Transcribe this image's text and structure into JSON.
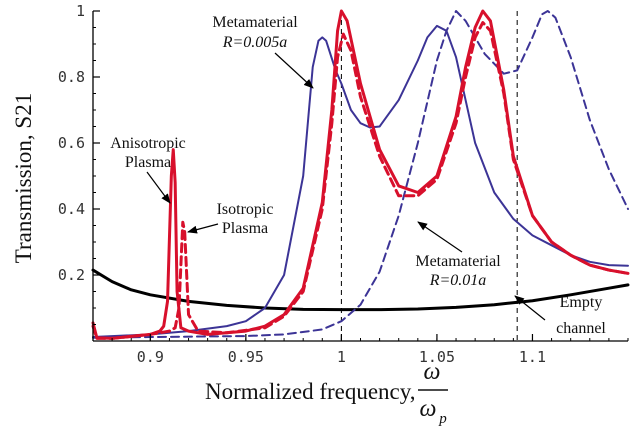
{
  "chart_data": {
    "type": "line",
    "xlabel": "Normalized frequency,",
    "xlabel_fraction": {
      "numerator": "ω",
      "denominator": "ω",
      "denominator_sub": "p"
    },
    "ylabel": "Transmission, S21",
    "xlim": [
      0.87,
      1.15
    ],
    "ylim": [
      0,
      1
    ],
    "x_ticks": [
      0.9,
      0.95,
      1.0,
      1.05,
      1.1
    ],
    "x_tick_labels": [
      "0.9",
      "0.95",
      "1",
      "1.05",
      "1.1"
    ],
    "y_ticks": [
      0.2,
      0.4,
      0.6,
      0.8,
      1.0
    ],
    "y_tick_labels": [
      "0.2",
      "0.4",
      "0.6",
      "0.8",
      "1"
    ],
    "grid": false,
    "reference_lines": [
      {
        "x": 1.0,
        "style": "dashed",
        "color": "#000000"
      },
      {
        "x": 1.092,
        "style": "dashed",
        "color": "#000000"
      }
    ],
    "series": [
      {
        "key": "empty",
        "color": "#000000",
        "dash": "solid",
        "width": 3,
        "points": [
          [
            0.87,
            0.215
          ],
          [
            0.88,
            0.18
          ],
          [
            0.89,
            0.155
          ],
          [
            0.9,
            0.14
          ],
          [
            0.92,
            0.12
          ],
          [
            0.94,
            0.108
          ],
          [
            0.96,
            0.1
          ],
          [
            0.98,
            0.096
          ],
          [
            1.0,
            0.095
          ],
          [
            1.02,
            0.095
          ],
          [
            1.04,
            0.097
          ],
          [
            1.06,
            0.102
          ],
          [
            1.08,
            0.11
          ],
          [
            1.1,
            0.122
          ],
          [
            1.12,
            0.14
          ],
          [
            1.14,
            0.16
          ],
          [
            1.15,
            0.17
          ]
        ]
      },
      {
        "key": "meta_r005",
        "color": "#3c3496",
        "dash": "solid",
        "width": 2,
        "points": [
          [
            0.87,
            0.012
          ],
          [
            0.9,
            0.02
          ],
          [
            0.92,
            0.03
          ],
          [
            0.94,
            0.045
          ],
          [
            0.95,
            0.06
          ],
          [
            0.96,
            0.1
          ],
          [
            0.97,
            0.2
          ],
          [
            0.98,
            0.5
          ],
          [
            0.985,
            0.83
          ],
          [
            0.988,
            0.91
          ],
          [
            0.99,
            0.92
          ],
          [
            0.992,
            0.91
          ],
          [
            0.997,
            0.82
          ],
          [
            1.0,
            0.78
          ],
          [
            1.005,
            0.7
          ],
          [
            1.01,
            0.66
          ],
          [
            1.015,
            0.647
          ],
          [
            1.02,
            0.65
          ],
          [
            1.03,
            0.73
          ],
          [
            1.04,
            0.85
          ],
          [
            1.045,
            0.92
          ],
          [
            1.05,
            0.955
          ],
          [
            1.055,
            0.94
          ],
          [
            1.06,
            0.86
          ],
          [
            1.07,
            0.6
          ],
          [
            1.08,
            0.45
          ],
          [
            1.09,
            0.37
          ],
          [
            1.1,
            0.32
          ],
          [
            1.11,
            0.29
          ],
          [
            1.12,
            0.26
          ],
          [
            1.13,
            0.24
          ],
          [
            1.14,
            0.23
          ],
          [
            1.15,
            0.228
          ]
        ]
      },
      {
        "key": "meta_r01",
        "color": "#3c3496",
        "dash": "dashed",
        "width": 2,
        "points": [
          [
            0.87,
            0.01
          ],
          [
            0.9,
            0.012
          ],
          [
            0.95,
            0.015
          ],
          [
            0.97,
            0.02
          ],
          [
            0.99,
            0.035
          ],
          [
            1.0,
            0.06
          ],
          [
            1.01,
            0.11
          ],
          [
            1.02,
            0.21
          ],
          [
            1.03,
            0.38
          ],
          [
            1.04,
            0.6
          ],
          [
            1.05,
            0.85
          ],
          [
            1.055,
            0.94
          ],
          [
            1.06,
            1.0
          ],
          [
            1.065,
            0.97
          ],
          [
            1.075,
            0.87
          ],
          [
            1.085,
            0.81
          ],
          [
            1.092,
            0.82
          ],
          [
            1.1,
            0.92
          ],
          [
            1.105,
            0.99
          ],
          [
            1.108,
            1.0
          ],
          [
            1.112,
            0.98
          ],
          [
            1.12,
            0.86
          ],
          [
            1.13,
            0.67
          ],
          [
            1.14,
            0.52
          ],
          [
            1.15,
            0.4
          ]
        ]
      },
      {
        "key": "aniso",
        "color": "#d8102c",
        "dash": "solid",
        "width": 3,
        "points": [
          [
            0.87,
            0.055
          ],
          [
            0.872,
            0.01
          ],
          [
            0.88,
            0.008
          ],
          [
            0.9,
            0.02
          ],
          [
            0.905,
            0.03
          ],
          [
            0.907,
            0.045
          ],
          [
            0.909,
            0.12
          ],
          [
            0.911,
            0.5
          ],
          [
            0.912,
            0.58
          ],
          [
            0.913,
            0.48
          ],
          [
            0.914,
            0.15
          ],
          [
            0.916,
            0.04
          ],
          [
            0.92,
            0.03
          ],
          [
            0.93,
            0.02
          ],
          [
            0.95,
            0.03
          ],
          [
            0.96,
            0.045
          ],
          [
            0.97,
            0.08
          ],
          [
            0.98,
            0.16
          ],
          [
            0.99,
            0.42
          ],
          [
            0.995,
            0.7
          ],
          [
            0.998,
            0.94
          ],
          [
            1.0,
            1.0
          ],
          [
            1.003,
            0.97
          ],
          [
            1.01,
            0.78
          ],
          [
            1.02,
            0.58
          ],
          [
            1.03,
            0.47
          ],
          [
            1.04,
            0.45
          ],
          [
            1.05,
            0.5
          ],
          [
            1.06,
            0.68
          ],
          [
            1.065,
            0.83
          ],
          [
            1.07,
            0.95
          ],
          [
            1.074,
            1.0
          ],
          [
            1.078,
            0.97
          ],
          [
            1.085,
            0.76
          ],
          [
            1.09,
            0.56
          ],
          [
            1.1,
            0.38
          ],
          [
            1.11,
            0.3
          ],
          [
            1.12,
            0.26
          ],
          [
            1.13,
            0.23
          ],
          [
            1.14,
            0.215
          ],
          [
            1.15,
            0.205
          ]
        ]
      },
      {
        "key": "iso",
        "color": "#d8102c",
        "dash": "dashed",
        "width": 3,
        "points": [
          [
            0.87,
            0.045
          ],
          [
            0.872,
            0.008
          ],
          [
            0.88,
            0.008
          ],
          [
            0.9,
            0.02
          ],
          [
            0.91,
            0.03
          ],
          [
            0.913,
            0.04
          ],
          [
            0.915,
            0.1
          ],
          [
            0.917,
            0.36
          ],
          [
            0.918,
            0.33
          ],
          [
            0.92,
            0.08
          ],
          [
            0.925,
            0.03
          ],
          [
            0.94,
            0.025
          ],
          [
            0.96,
            0.04
          ],
          [
            0.97,
            0.075
          ],
          [
            0.98,
            0.15
          ],
          [
            0.99,
            0.4
          ],
          [
            0.995,
            0.66
          ],
          [
            0.998,
            0.86
          ],
          [
            1.001,
            0.93
          ],
          [
            1.005,
            0.88
          ],
          [
            1.01,
            0.74
          ],
          [
            1.02,
            0.56
          ],
          [
            1.03,
            0.44
          ],
          [
            1.04,
            0.44
          ],
          [
            1.05,
            0.49
          ],
          [
            1.06,
            0.66
          ],
          [
            1.065,
            0.8
          ],
          [
            1.07,
            0.92
          ],
          [
            1.074,
            0.965
          ],
          [
            1.078,
            0.94
          ],
          [
            1.085,
            0.75
          ],
          [
            1.09,
            0.55
          ],
          [
            1.1,
            0.38
          ],
          [
            1.11,
            0.3
          ],
          [
            1.12,
            0.26
          ],
          [
            1.13,
            0.23
          ],
          [
            1.14,
            0.215
          ],
          [
            1.15,
            0.205
          ]
        ]
      }
    ],
    "annotations": [
      {
        "key": "aniso_label",
        "lines": [
          "Anisotropic",
          "Plasma"
        ]
      },
      {
        "key": "iso_label",
        "lines": [
          "Isotropic",
          "Plasma"
        ]
      },
      {
        "key": "meta1_label",
        "lines": [
          "Metamaterial",
          "R=0.005a"
        ]
      },
      {
        "key": "meta2_label",
        "lines": [
          "Metamaterial",
          "R=0.01a"
        ]
      },
      {
        "key": "empty_label",
        "lines": [
          "Empty",
          "channel"
        ]
      }
    ]
  }
}
